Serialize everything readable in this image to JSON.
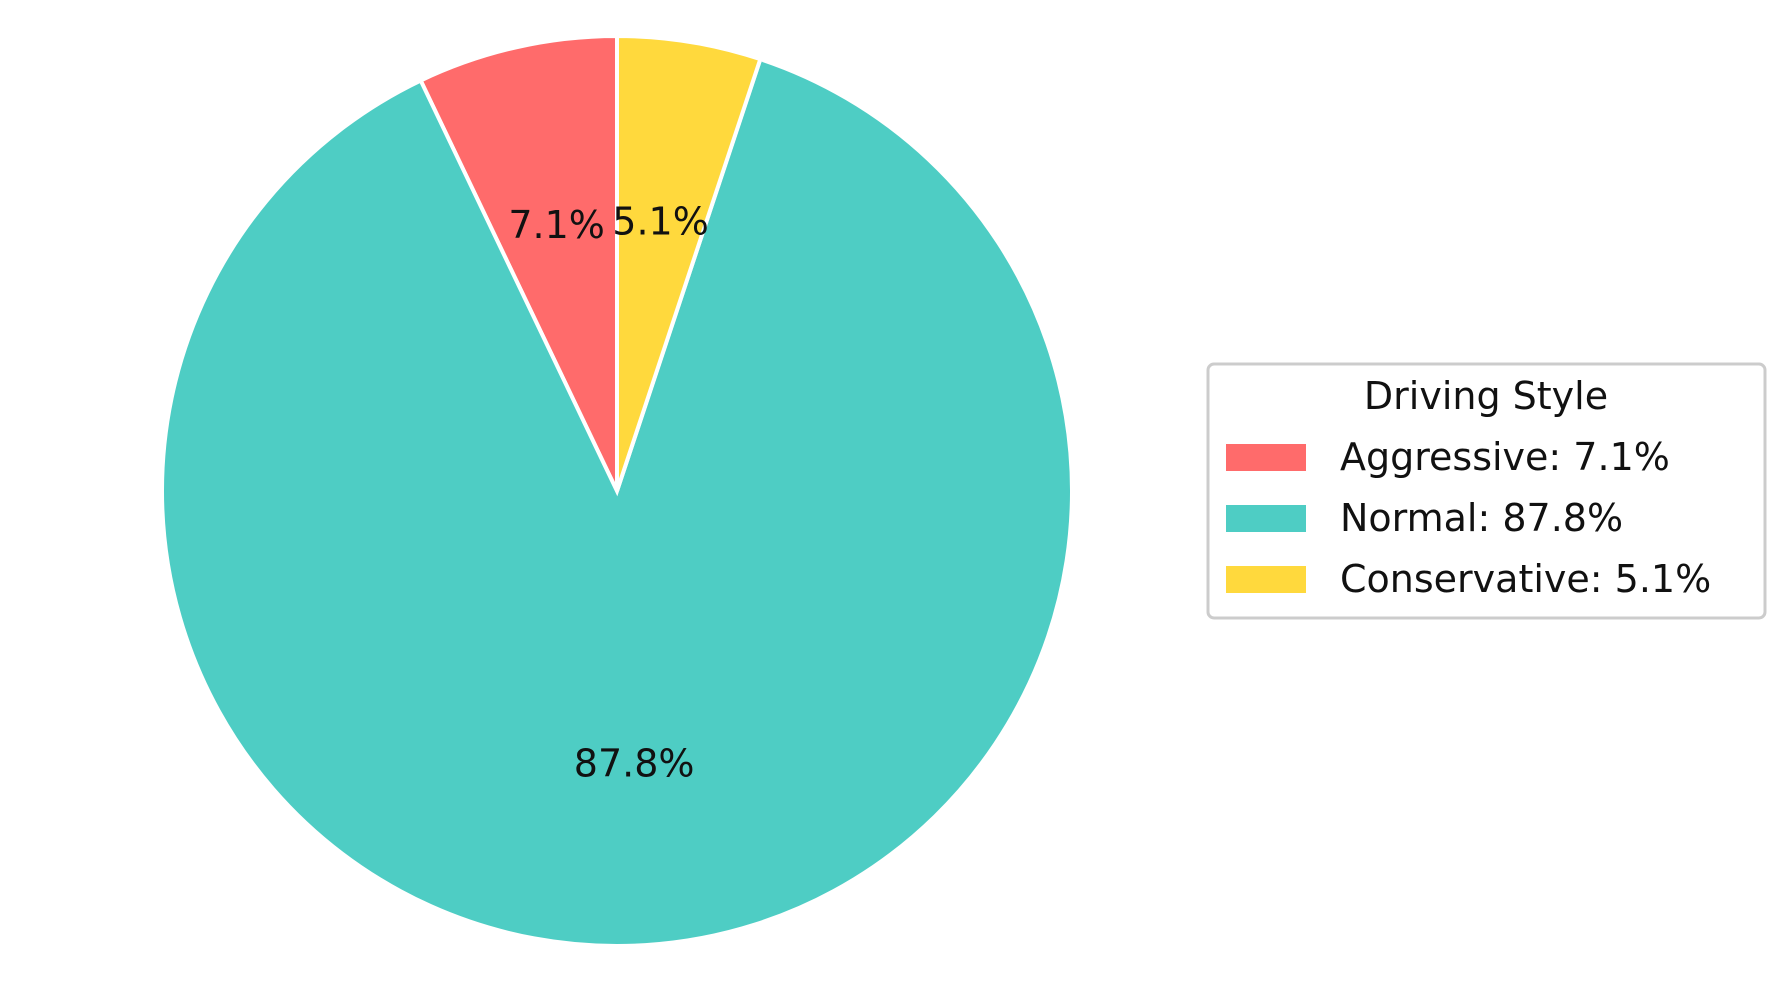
{
  "chart_data": {
    "type": "pie",
    "categories": [
      "Aggressive",
      "Normal",
      "Conservative"
    ],
    "values": [
      7.1,
      87.8,
      5.1
    ],
    "slice_labels": [
      "7.1%",
      "87.8%",
      "5.1%"
    ],
    "colors": [
      "#FF6B6B",
      "#4ECDC4",
      "#FFD93D"
    ],
    "start_angle_deg": 90,
    "direction": "counterclockwise",
    "legend": {
      "title": "Driving Style",
      "placement": "right",
      "entries": [
        "Aggressive: 7.1%",
        "Normal: 87.8%",
        "Conservative: 5.1%"
      ]
    }
  }
}
